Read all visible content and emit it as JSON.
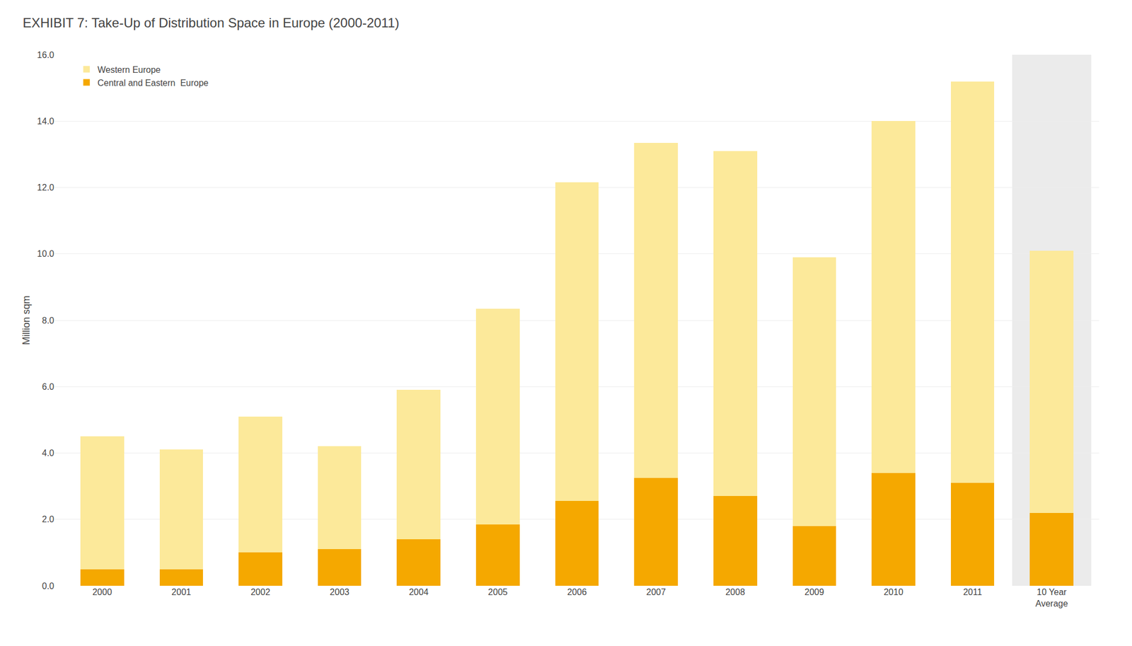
{
  "chart_data": {
    "type": "bar",
    "title": "EXHIBIT 7: Take-Up of Distribution Space in Europe (2000-2011)",
    "ylabel": "Million sqm",
    "categories": [
      "2000",
      "2001",
      "2002",
      "2003",
      "2004",
      "2005",
      "2006",
      "2007",
      "2008",
      "2009",
      "2010",
      "2011",
      "10 Year\nAverage"
    ],
    "series": [
      {
        "name": "Central and Eastern  Europe",
        "color": "#f5a800",
        "values": [
          0.5,
          0.5,
          1.0,
          1.1,
          1.4,
          1.85,
          2.55,
          3.25,
          2.7,
          1.8,
          3.4,
          3.1,
          2.2
        ]
      },
      {
        "name": "Western Europe",
        "color": "#fce99a",
        "values": [
          4.0,
          3.6,
          4.1,
          3.1,
          4.5,
          6.5,
          9.6,
          10.1,
          10.4,
          8.1,
          10.6,
          12.1,
          7.9
        ]
      }
    ],
    "stacked": true,
    "ylim": [
      0,
      16.0
    ],
    "yticks": [
      {
        "value": 0.0,
        "label": "0.0"
      },
      {
        "value": 2.0,
        "label": "2.0"
      },
      {
        "value": 4.0,
        "label": "4.0"
      },
      {
        "value": 6.0,
        "label": "6.0"
      },
      {
        "value": 8.0,
        "label": "8.0"
      },
      {
        "value": 10.0,
        "label": "10.0"
      },
      {
        "value": 12.0,
        "label": "12.0"
      },
      {
        "value": 14.0,
        "label": "14.0"
      },
      {
        "value": 16.0,
        "label": "16.0"
      }
    ],
    "grid": true,
    "legend": "upper left"
  }
}
